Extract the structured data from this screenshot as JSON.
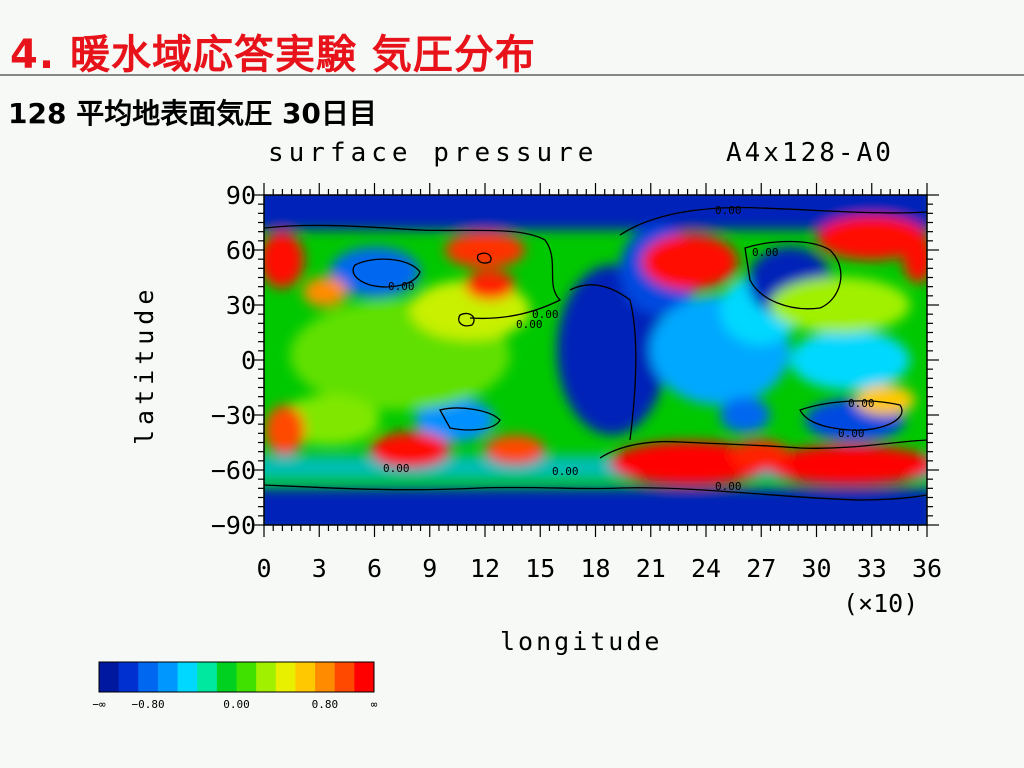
{
  "slide": {
    "title": "4. 暖水域応答実験 気圧分布",
    "subtitle": "128 平均地表面気圧 30日目"
  },
  "chart_data": {
    "type": "heatmap",
    "title": "surface pressure",
    "run_label": "A4x128-A0",
    "xlabel": "longitude",
    "ylabel": "latitude",
    "x_scale_note": "(×10)",
    "xlim": [
      0,
      36
    ],
    "ylim": [
      -90,
      90
    ],
    "x_ticks": [
      "0",
      "3",
      "6",
      "9",
      "12",
      "15",
      "18",
      "21",
      "24",
      "27",
      "30",
      "33",
      "36"
    ],
    "y_ticks": [
      "90",
      "60",
      "30",
      "0",
      "−30",
      "−60",
      "−90"
    ],
    "contour_labels": [
      "0.00",
      "0.00",
      "0.00",
      "0.00",
      "0.00",
      "0.00",
      "0.00",
      "0.00",
      "0.00",
      "0.00"
    ],
    "colorbar": {
      "colors": [
        "#0018a0",
        "#0030d0",
        "#0068f0",
        "#0098ff",
        "#00d8ff",
        "#00e8a0",
        "#00d020",
        "#40e000",
        "#a0f000",
        "#e8f000",
        "#ffc800",
        "#ff8c00",
        "#ff4800",
        "#ff0000"
      ],
      "labels": [
        "−∞",
        "−0.80",
        "0.00",
        "0.80",
        "∞"
      ]
    }
  }
}
